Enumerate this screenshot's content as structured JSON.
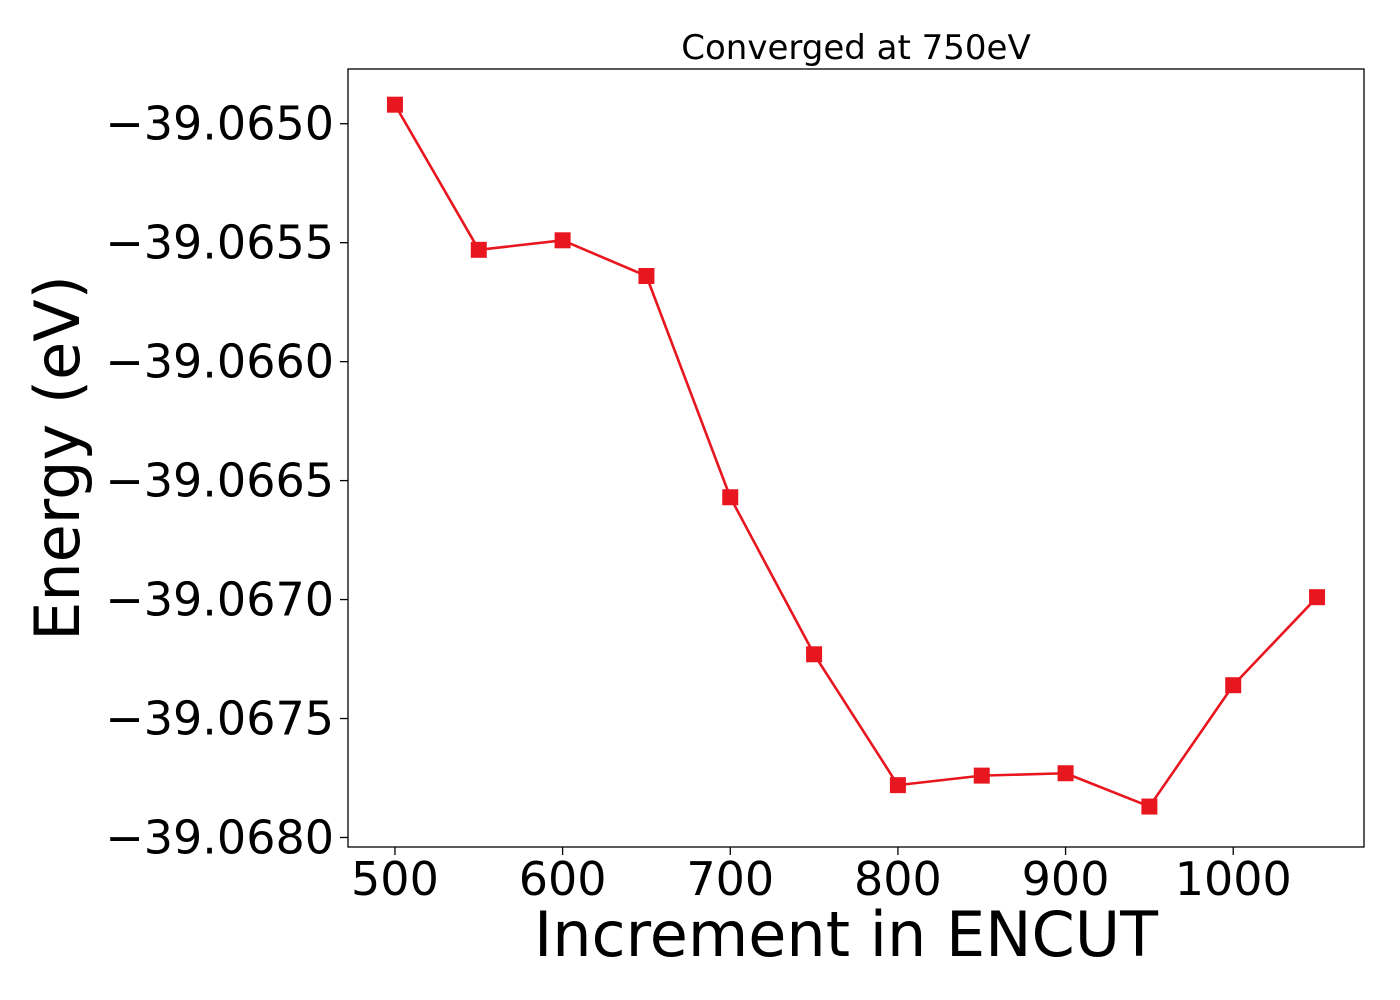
{
  "chart_data": {
    "type": "line",
    "title": "Converged at 750eV",
    "xlabel": "Increment in ENCUT",
    "ylabel": "Energy (eV)",
    "xlim": [
      472,
      1078
    ],
    "ylim": [
      -39.06804,
      -39.06477
    ],
    "x_ticks": [
      {
        "value": 500,
        "label": "500"
      },
      {
        "value": 600,
        "label": "600"
      },
      {
        "value": 700,
        "label": "700"
      },
      {
        "value": 800,
        "label": "800"
      },
      {
        "value": 900,
        "label": "900"
      },
      {
        "value": 1000,
        "label": "1000"
      }
    ],
    "y_ticks": [
      {
        "value": -39.065,
        "label": "−39.0650"
      },
      {
        "value": -39.0655,
        "label": "−39.0655"
      },
      {
        "value": -39.066,
        "label": "−39.0660"
      },
      {
        "value": -39.0665,
        "label": "−39.0665"
      },
      {
        "value": -39.067,
        "label": "−39.0670"
      },
      {
        "value": -39.0675,
        "label": "−39.0675"
      },
      {
        "value": -39.068,
        "label": "−39.0680"
      }
    ],
    "series": [
      {
        "color": "#e8161f",
        "marker": "square",
        "x": [
          500,
          550,
          600,
          650,
          700,
          750,
          800,
          850,
          900,
          950,
          1000,
          1050
        ],
        "y": [
          -39.06492,
          -39.06553,
          -39.06549,
          -39.06564,
          -39.06657,
          -39.06723,
          -39.06778,
          -39.06774,
          -39.06773,
          -39.06787,
          -39.06736,
          -39.06699
        ]
      }
    ],
    "grid": false,
    "legend": "none"
  }
}
